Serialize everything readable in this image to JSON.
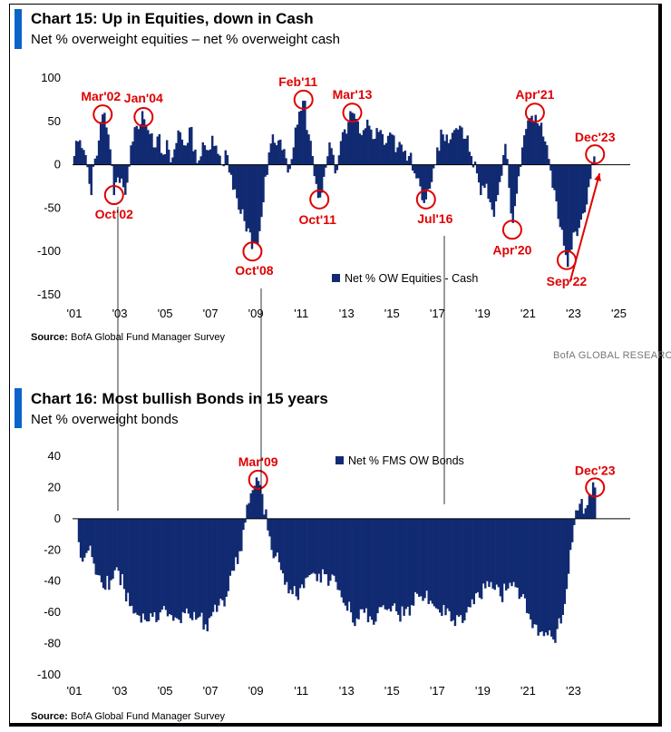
{
  "brand": "BofA GLOBAL RESEARCH",
  "chart_data": [
    {
      "type": "bar",
      "title": "Chart 15: Up in Equities, down in Cash",
      "subtitle": "Net % overweight equities – net % overweight cash",
      "source_label": "Source:",
      "source_text": "BofA Global Fund Manager Survey",
      "series_name": "Net % OW Equities - Cash",
      "legend_position": "bottom-center",
      "ylim": [
        -150,
        100
      ],
      "yticks": [
        100,
        50,
        0,
        -50,
        -100,
        -150
      ],
      "xlim": [
        2001.0,
        2025.5
      ],
      "xticks": [
        {
          "label": "'01",
          "year": 2001
        },
        {
          "label": "'03",
          "year": 2003
        },
        {
          "label": "'05",
          "year": 2005
        },
        {
          "label": "'07",
          "year": 2007
        },
        {
          "label": "'09",
          "year": 2009
        },
        {
          "label": "'11",
          "year": 2011
        },
        {
          "label": "'13",
          "year": 2013
        },
        {
          "label": "'15",
          "year": 2015
        },
        {
          "label": "'17",
          "year": 2017
        },
        {
          "label": "'19",
          "year": 2019
        },
        {
          "label": "'21",
          "year": 2021
        },
        {
          "label": "'23",
          "year": 2023
        },
        {
          "label": "'25",
          "year": 2025
        }
      ],
      "keypoints": [
        [
          2001.0,
          10
        ],
        [
          2001.2,
          30
        ],
        [
          2001.45,
          15
        ],
        [
          2001.6,
          -5
        ],
        [
          2001.75,
          -35
        ],
        [
          2001.9,
          5
        ],
        [
          2002.1,
          30
        ],
        [
          2002.25,
          58
        ],
        [
          2002.45,
          40
        ],
        [
          2002.6,
          15
        ],
        [
          2002.75,
          -35
        ],
        [
          2002.9,
          -15
        ],
        [
          2003.05,
          -12
        ],
        [
          2003.2,
          -30
        ],
        [
          2003.4,
          -5
        ],
        [
          2003.55,
          20
        ],
        [
          2003.7,
          50
        ],
        [
          2003.85,
          40
        ],
        [
          2004.05,
          55
        ],
        [
          2004.25,
          40
        ],
        [
          2004.5,
          20
        ],
        [
          2004.7,
          35
        ],
        [
          2004.9,
          10
        ],
        [
          2005.1,
          30
        ],
        [
          2005.3,
          5
        ],
        [
          2005.5,
          25
        ],
        [
          2005.7,
          40
        ],
        [
          2005.9,
          20
        ],
        [
          2006.1,
          45
        ],
        [
          2006.3,
          20
        ],
        [
          2006.5,
          5
        ],
        [
          2006.7,
          30
        ],
        [
          2006.9,
          15
        ],
        [
          2007.1,
          35
        ],
        [
          2007.3,
          15
        ],
        [
          2007.5,
          0
        ],
        [
          2007.7,
          20
        ],
        [
          2007.9,
          -10
        ],
        [
          2008.1,
          -30
        ],
        [
          2008.3,
          -55
        ],
        [
          2008.5,
          -65
        ],
        [
          2008.7,
          -75
        ],
        [
          2008.85,
          -100
        ],
        [
          2009.0,
          -90
        ],
        [
          2009.15,
          -80
        ],
        [
          2009.35,
          -40
        ],
        [
          2009.55,
          10
        ],
        [
          2009.75,
          35
        ],
        [
          2009.95,
          20
        ],
        [
          2010.1,
          30
        ],
        [
          2010.3,
          10
        ],
        [
          2010.5,
          -5
        ],
        [
          2010.7,
          25
        ],
        [
          2010.9,
          60
        ],
        [
          2011.1,
          75
        ],
        [
          2011.3,
          40
        ],
        [
          2011.5,
          10
        ],
        [
          2011.65,
          -20
        ],
        [
          2011.8,
          -40
        ],
        [
          2011.95,
          -30
        ],
        [
          2012.1,
          0
        ],
        [
          2012.3,
          25
        ],
        [
          2012.5,
          -10
        ],
        [
          2012.7,
          15
        ],
        [
          2012.9,
          40
        ],
        [
          2013.1,
          50
        ],
        [
          2013.25,
          60
        ],
        [
          2013.5,
          50
        ],
        [
          2013.75,
          40
        ],
        [
          2014.0,
          45
        ],
        [
          2014.25,
          30
        ],
        [
          2014.5,
          40
        ],
        [
          2014.75,
          25
        ],
        [
          2015.0,
          35
        ],
        [
          2015.25,
          20
        ],
        [
          2015.5,
          15
        ],
        [
          2015.75,
          10
        ],
        [
          2016.0,
          -10
        ],
        [
          2016.25,
          -25
        ],
        [
          2016.5,
          -40
        ],
        [
          2016.75,
          -20
        ],
        [
          2017.0,
          20
        ],
        [
          2017.25,
          35
        ],
        [
          2017.5,
          25
        ],
        [
          2017.75,
          40
        ],
        [
          2018.0,
          45
        ],
        [
          2018.25,
          30
        ],
        [
          2018.5,
          10
        ],
        [
          2018.75,
          -10
        ],
        [
          2018.95,
          -40
        ],
        [
          2019.1,
          -25
        ],
        [
          2019.3,
          -40
        ],
        [
          2019.5,
          -60
        ],
        [
          2019.7,
          -30
        ],
        [
          2019.9,
          10
        ],
        [
          2020.05,
          20
        ],
        [
          2020.2,
          -40
        ],
        [
          2020.3,
          -75
        ],
        [
          2020.45,
          -40
        ],
        [
          2020.6,
          -10
        ],
        [
          2020.75,
          20
        ],
        [
          2020.9,
          40
        ],
        [
          2021.1,
          55
        ],
        [
          2021.3,
          60
        ],
        [
          2021.5,
          45
        ],
        [
          2021.7,
          30
        ],
        [
          2021.9,
          10
        ],
        [
          2022.1,
          -30
        ],
        [
          2022.3,
          -60
        ],
        [
          2022.5,
          -75
        ],
        [
          2022.7,
          -110
        ],
        [
          2022.9,
          -100
        ],
        [
          2023.1,
          -75
        ],
        [
          2023.3,
          -65
        ],
        [
          2023.5,
          -55
        ],
        [
          2023.7,
          -20
        ],
        [
          2023.85,
          5
        ],
        [
          2023.95,
          12
        ]
      ],
      "annotations": [
        {
          "label": "Mar'02",
          "x": 2002.25,
          "y": 58
        },
        {
          "label": "Jan'04",
          "x": 2004.05,
          "y": 55
        },
        {
          "label": "Feb'11",
          "x": 2011.1,
          "y": 75
        },
        {
          "label": "Mar'13",
          "x": 2013.25,
          "y": 60
        },
        {
          "label": "Apr'21",
          "x": 2021.3,
          "y": 60
        },
        {
          "label": "Dec'23",
          "x": 2023.95,
          "y": 12
        },
        {
          "label": "Oct'02",
          "x": 2002.75,
          "y": -35
        },
        {
          "label": "Oct'08",
          "x": 2008.85,
          "y": -100
        },
        {
          "label": "Oct'11",
          "x": 2011.8,
          "y": -40
        },
        {
          "label": "Jul'16",
          "x": 2016.5,
          "y": -40
        },
        {
          "label": "Apr'20",
          "x": 2020.3,
          "y": -75
        },
        {
          "label": "Sep'22",
          "x": 2022.7,
          "y": -110
        }
      ]
    },
    {
      "type": "bar",
      "title": "Chart 16: Most bullish Bonds in 15 years",
      "subtitle": "Net % overweight bonds",
      "source_label": "Source:",
      "source_text": "BofA Global Fund Manager Survey",
      "series_name": "Net % FMS OW Bonds",
      "legend_position": "top-center",
      "ylim": [
        -100,
        40
      ],
      "yticks": [
        40,
        20,
        0,
        -20,
        -40,
        -60,
        -80,
        -100
      ],
      "xlim": [
        2001.0,
        2025.5
      ],
      "xticks": [
        {
          "label": "'01",
          "year": 2001
        },
        {
          "label": "'03",
          "year": 2003
        },
        {
          "label": "'05",
          "year": 2005
        },
        {
          "label": "'07",
          "year": 2007
        },
        {
          "label": "'09",
          "year": 2009
        },
        {
          "label": "'11",
          "year": 2011
        },
        {
          "label": "'13",
          "year": 2013
        },
        {
          "label": "'15",
          "year": 2015
        },
        {
          "label": "'17",
          "year": 2017
        },
        {
          "label": "'19",
          "year": 2019
        },
        {
          "label": "'21",
          "year": 2021
        },
        {
          "label": "'23",
          "year": 2023
        }
      ],
      "keypoints": [
        [
          2001.2,
          -15
        ],
        [
          2001.4,
          -30
        ],
        [
          2001.6,
          -20
        ],
        [
          2001.8,
          -25
        ],
        [
          2002.0,
          -35
        ],
        [
          2002.3,
          -45
        ],
        [
          2002.6,
          -40
        ],
        [
          2002.9,
          -30
        ],
        [
          2003.2,
          -45
        ],
        [
          2003.5,
          -55
        ],
        [
          2003.8,
          -62
        ],
        [
          2004.1,
          -65
        ],
        [
          2004.4,
          -60
        ],
        [
          2004.7,
          -65
        ],
        [
          2005.0,
          -58
        ],
        [
          2005.3,
          -62
        ],
        [
          2005.6,
          -65
        ],
        [
          2005.9,
          -60
        ],
        [
          2006.2,
          -65
        ],
        [
          2006.5,
          -62
        ],
        [
          2006.8,
          -68
        ],
        [
          2007.1,
          -60
        ],
        [
          2007.4,
          -55
        ],
        [
          2007.7,
          -50
        ],
        [
          2008.0,
          -35
        ],
        [
          2008.3,
          -20
        ],
        [
          2008.5,
          -5
        ],
        [
          2008.7,
          10
        ],
        [
          2008.9,
          20
        ],
        [
          2009.1,
          25
        ],
        [
          2009.3,
          15
        ],
        [
          2009.5,
          -5
        ],
        [
          2009.7,
          -20
        ],
        [
          2009.9,
          -25
        ],
        [
          2010.2,
          -35
        ],
        [
          2010.5,
          -45
        ],
        [
          2010.8,
          -50
        ],
        [
          2011.1,
          -45
        ],
        [
          2011.4,
          -35
        ],
        [
          2011.7,
          -40
        ],
        [
          2012.0,
          -35
        ],
        [
          2012.3,
          -40
        ],
        [
          2012.6,
          -45
        ],
        [
          2012.9,
          -55
        ],
        [
          2013.2,
          -60
        ],
        [
          2013.5,
          -65
        ],
        [
          2013.8,
          -60
        ],
        [
          2014.1,
          -65
        ],
        [
          2014.4,
          -60
        ],
        [
          2014.7,
          -58
        ],
        [
          2015.0,
          -55
        ],
        [
          2015.3,
          -62
        ],
        [
          2015.6,
          -58
        ],
        [
          2015.9,
          -55
        ],
        [
          2016.2,
          -50
        ],
        [
          2016.5,
          -45
        ],
        [
          2016.8,
          -55
        ],
        [
          2017.1,
          -60
        ],
        [
          2017.4,
          -62
        ],
        [
          2017.7,
          -65
        ],
        [
          2018.0,
          -62
        ],
        [
          2018.3,
          -60
        ],
        [
          2018.6,
          -55
        ],
        [
          2018.9,
          -50
        ],
        [
          2019.2,
          -40
        ],
        [
          2019.5,
          -45
        ],
        [
          2019.8,
          -50
        ],
        [
          2020.1,
          -45
        ],
        [
          2020.4,
          -40
        ],
        [
          2020.7,
          -50
        ],
        [
          2021.0,
          -60
        ],
        [
          2021.3,
          -68
        ],
        [
          2021.6,
          -72
        ],
        [
          2021.9,
          -75
        ],
        [
          2022.1,
          -78
        ],
        [
          2022.3,
          -70
        ],
        [
          2022.5,
          -65
        ],
        [
          2022.7,
          -45
        ],
        [
          2022.9,
          -15
        ],
        [
          2023.1,
          5
        ],
        [
          2023.3,
          10
        ],
        [
          2023.5,
          5
        ],
        [
          2023.7,
          15
        ],
        [
          2023.95,
          20
        ]
      ],
      "annotations": [
        {
          "label": "Mar'09",
          "x": 2009.1,
          "y": 25
        },
        {
          "label": "Dec'23",
          "x": 2023.95,
          "y": 20
        }
      ]
    }
  ]
}
